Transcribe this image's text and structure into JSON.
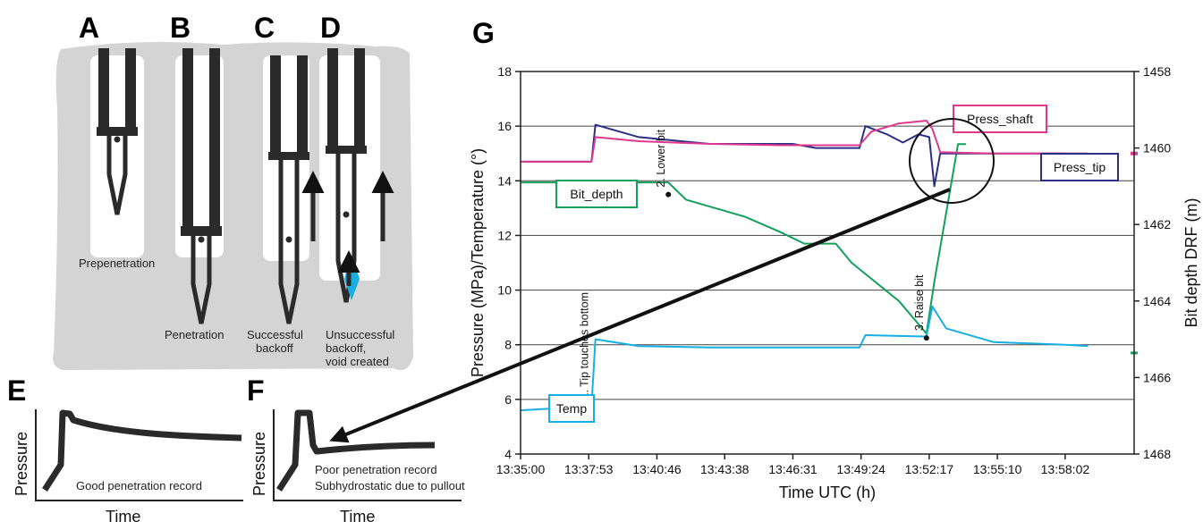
{
  "panels": {
    "a": "A",
    "b": "B",
    "c": "C",
    "d": "D",
    "e": "E",
    "f": "F",
    "g": "G"
  },
  "schematic": {
    "prepenetration": "Prepenetration",
    "penetration": "Penetration",
    "successful": [
      "Successful",
      "backoff"
    ],
    "unsuccessful": [
      "Unsuccessful",
      "backoff,",
      "void created"
    ]
  },
  "panel_e": {
    "ylabel": "Pressure",
    "xlabel": "Time",
    "caption": "Good penetration record"
  },
  "panel_f": {
    "ylabel": "Pressure",
    "xlabel": "Time",
    "caption": [
      "Poor penetration record",
      "Subhydrostatic due to pullout"
    ]
  },
  "colors": {
    "press_shaft": "#e0388f",
    "press_tip": "#2b2f86",
    "bit_depth": "#13a05a",
    "temp": "#16aee3",
    "sediment": "#d4d4d4",
    "tool": "#2a2a2a"
  },
  "chart_data": {
    "type": "line",
    "title": "",
    "xlabel": "Time UTC (h)",
    "ylabel": "Pressure (MPa)/Temperature (°)",
    "y2label": "Bit depth DRF (m)",
    "x_ticks": [
      "13:35:00",
      "13:37:53",
      "13:40:46",
      "13:43:38",
      "13:46:31",
      "13:49:24",
      "13:52:17",
      "13:55:10",
      "13:58:02"
    ],
    "ylim": [
      4,
      18
    ],
    "y_ticks": [
      "4",
      "6",
      "8",
      "10",
      "12",
      "14",
      "16",
      "18"
    ],
    "y2lim": [
      1468,
      1458
    ],
    "y2_ticks": [
      "1458",
      "1460",
      "1462",
      "1464",
      "1466",
      "1468"
    ],
    "grid": "horizontal",
    "series": [
      {
        "name": "Press_shaft",
        "axis": "left",
        "points": [
          [
            "13:35:00",
            14.7
          ],
          [
            "13:38:00",
            14.7
          ],
          [
            "13:38:10",
            15.6
          ],
          [
            "13:40:00",
            15.45
          ],
          [
            "13:43:00",
            15.35
          ],
          [
            "13:46:00",
            15.3
          ],
          [
            "13:49:20",
            15.3
          ],
          [
            "13:49:50",
            15.8
          ],
          [
            "13:51:00",
            16.1
          ],
          [
            "13:52:10",
            16.2
          ],
          [
            "13:52:25",
            15.9
          ],
          [
            "13:52:45",
            15.05
          ],
          [
            "13:55:00",
            15.0
          ],
          [
            "13:58:02",
            15.0
          ],
          [
            "13:59:00",
            15.0
          ]
        ]
      },
      {
        "name": "Press_tip",
        "axis": "left",
        "points": [
          [
            "13:35:00",
            14.7
          ],
          [
            "13:38:00",
            14.7
          ],
          [
            "13:38:10",
            16.05
          ],
          [
            "13:40:00",
            15.6
          ],
          [
            "13:43:00",
            15.35
          ],
          [
            "13:46:30",
            15.35
          ],
          [
            "13:47:30",
            15.2
          ],
          [
            "13:49:20",
            15.2
          ],
          [
            "13:49:35",
            16.0
          ],
          [
            "13:50:30",
            15.7
          ],
          [
            "13:51:10",
            15.4
          ],
          [
            "13:51:50",
            15.7
          ],
          [
            "13:52:17",
            15.6
          ],
          [
            "13:52:30",
            13.8
          ],
          [
            "13:52:45",
            15.0
          ],
          [
            "13:55:00",
            15.0
          ],
          [
            "13:58:02",
            15.0
          ]
        ]
      },
      {
        "name": "Bit_depth",
        "axis": "right",
        "points": [
          [
            "13:35:00",
            1460.9
          ],
          [
            "13:41:15",
            1460.9
          ],
          [
            "13:42:00",
            1461.35
          ],
          [
            "13:44:30",
            1461.8
          ],
          [
            "13:46:00",
            1462.2
          ],
          [
            "13:47:00",
            1462.5
          ],
          [
            "13:48:20",
            1462.5
          ],
          [
            "13:49:00",
            1463.0
          ],
          [
            "13:51:00",
            1464.0
          ],
          [
            "13:52:10",
            1464.85
          ],
          [
            "13:52:30",
            1463.5
          ],
          [
            "13:53:30",
            1459.9
          ],
          [
            "13:53:50",
            1459.9
          ]
        ]
      },
      {
        "name": "Temp",
        "axis": "left",
        "points": [
          [
            "13:35:00",
            5.6
          ],
          [
            "13:38:00",
            5.75
          ],
          [
            "13:38:10",
            8.2
          ],
          [
            "13:40:00",
            7.95
          ],
          [
            "13:43:00",
            7.9
          ],
          [
            "13:49:20",
            7.9
          ],
          [
            "13:49:35",
            8.35
          ],
          [
            "13:52:10",
            8.3
          ],
          [
            "13:52:25",
            9.4
          ],
          [
            "13:53:00",
            8.6
          ],
          [
            "13:55:00",
            8.1
          ],
          [
            "13:58:02",
            8.0
          ],
          [
            "13:59:00",
            7.95
          ]
        ]
      }
    ],
    "annotations": [
      {
        "text": "1. Tip touches bottom",
        "x": "13:38:00",
        "y": 5.75
      },
      {
        "text": "2. Lower bit",
        "x": "13:41:15",
        "y": 13.5
      },
      {
        "text": "3. Raise bit",
        "x": "13:52:10",
        "y": 8.25
      }
    ],
    "legend_labels": {
      "press_shaft": "Press_shaft",
      "press_tip": "Press_tip",
      "bit_depth": "Bit_depth",
      "temp": "Temp"
    }
  }
}
